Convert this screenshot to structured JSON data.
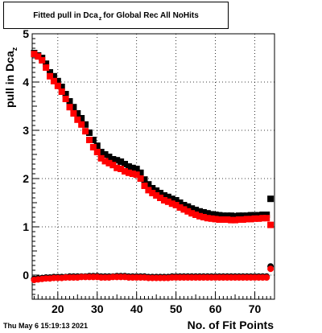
{
  "title": {
    "prefix": "Fitted pull in Dca",
    "sub": "z",
    "suffix": "for Global Rec All NoHits"
  },
  "timestamp": "Thu May  6 15:19:13 2021",
  "chart_data": {
    "type": "scatter",
    "title": "Fitted pull in Dca z for Global Rec All NoHits",
    "xlabel": "No. of Fit Points",
    "ylabel": {
      "main": "pull in Dca",
      "sub": "z"
    },
    "xlim": [
      13.5,
      75
    ],
    "ylim": [
      -0.5,
      5
    ],
    "xticks": [
      20,
      30,
      40,
      50,
      60,
      70
    ],
    "yticks": [
      0,
      1,
      2,
      3,
      4,
      5
    ],
    "grid": true,
    "series": [
      {
        "color": "#000000",
        "marker": "square",
        "x": [
          14,
          15,
          16,
          17,
          18,
          19,
          20,
          21,
          22,
          23,
          24,
          25,
          26,
          27,
          28,
          29,
          30,
          31,
          32,
          33,
          34,
          35,
          36,
          37,
          38,
          39,
          40,
          41,
          42,
          43,
          44,
          45,
          46,
          47,
          48,
          49,
          50,
          51,
          52,
          53,
          54,
          55,
          56,
          57,
          58,
          59,
          60,
          61,
          62,
          63,
          64,
          65,
          66,
          67,
          68,
          69,
          70,
          71,
          72,
          73,
          74
        ],
        "y": [
          4.6,
          4.55,
          4.5,
          4.38,
          4.2,
          4.12,
          4.02,
          3.9,
          3.75,
          3.6,
          3.48,
          3.35,
          3.25,
          3.12,
          2.95,
          2.8,
          2.68,
          2.55,
          2.5,
          2.45,
          2.4,
          2.38,
          2.35,
          2.3,
          2.25,
          2.22,
          2.2,
          2.12,
          1.98,
          1.88,
          1.8,
          1.75,
          1.7,
          1.65,
          1.62,
          1.58,
          1.55,
          1.5,
          1.45,
          1.42,
          1.38,
          1.35,
          1.32,
          1.3,
          1.28,
          1.26,
          1.25,
          1.24,
          1.23,
          1.23,
          1.23,
          1.22,
          1.23,
          1.23,
          1.23,
          1.24,
          1.24,
          1.24,
          1.25,
          1.25,
          1.58
        ]
      },
      {
        "color": "#ff0000",
        "marker": "square",
        "x": [
          14,
          15,
          16,
          17,
          18,
          19,
          20,
          21,
          22,
          23,
          24,
          25,
          26,
          27,
          28,
          29,
          30,
          31,
          32,
          33,
          34,
          35,
          36,
          37,
          38,
          39,
          40,
          41,
          42,
          43,
          44,
          45,
          46,
          47,
          48,
          49,
          50,
          51,
          52,
          53,
          54,
          55,
          56,
          57,
          58,
          59,
          60,
          61,
          62,
          63,
          64,
          65,
          66,
          67,
          68,
          69,
          70,
          71,
          72,
          73,
          74
        ],
        "y": [
          4.58,
          4.53,
          4.45,
          4.3,
          4.12,
          4.02,
          3.92,
          3.8,
          3.65,
          3.48,
          3.35,
          3.22,
          3.12,
          2.98,
          2.8,
          2.65,
          2.55,
          2.42,
          2.36,
          2.32,
          2.28,
          2.22,
          2.2,
          2.15,
          2.12,
          2.1,
          2.08,
          2.0,
          1.85,
          1.76,
          1.7,
          1.65,
          1.6,
          1.55,
          1.52,
          1.48,
          1.45,
          1.4,
          1.36,
          1.32,
          1.28,
          1.25,
          1.22,
          1.2,
          1.18,
          1.17,
          1.16,
          1.15,
          1.15,
          1.15,
          1.14,
          1.14,
          1.15,
          1.15,
          1.16,
          1.16,
          1.17,
          1.17,
          1.18,
          1.18,
          1.04
        ]
      },
      {
        "color": "#000000",
        "marker": "circle",
        "x": [
          14,
          15,
          16,
          17,
          18,
          19,
          20,
          21,
          22,
          23,
          24,
          25,
          26,
          27,
          28,
          29,
          30,
          31,
          32,
          33,
          34,
          35,
          36,
          37,
          38,
          39,
          40,
          41,
          42,
          43,
          44,
          45,
          46,
          47,
          48,
          49,
          50,
          51,
          52,
          53,
          54,
          55,
          56,
          57,
          58,
          59,
          60,
          61,
          62,
          63,
          64,
          65,
          66,
          67,
          68,
          69,
          70,
          71,
          72,
          73,
          74
        ],
        "y": [
          -0.08,
          -0.07,
          -0.06,
          -0.05,
          -0.05,
          -0.04,
          -0.04,
          -0.04,
          -0.04,
          -0.03,
          -0.03,
          -0.03,
          -0.03,
          -0.03,
          -0.02,
          -0.02,
          -0.02,
          -0.03,
          -0.03,
          -0.03,
          -0.03,
          -0.02,
          -0.02,
          -0.02,
          -0.03,
          -0.03,
          -0.03,
          -0.03,
          -0.03,
          -0.04,
          -0.04,
          -0.04,
          -0.04,
          -0.04,
          -0.04,
          -0.03,
          -0.03,
          -0.03,
          -0.03,
          -0.03,
          -0.03,
          -0.03,
          -0.03,
          -0.03,
          -0.03,
          -0.03,
          -0.03,
          -0.03,
          -0.03,
          -0.03,
          -0.03,
          -0.03,
          -0.03,
          -0.03,
          -0.03,
          -0.03,
          -0.03,
          -0.03,
          -0.03,
          -0.03,
          0.18
        ]
      },
      {
        "color": "#ff0000",
        "marker": "circle",
        "x": [
          14,
          15,
          16,
          17,
          18,
          19,
          20,
          21,
          22,
          23,
          24,
          25,
          26,
          27,
          28,
          29,
          30,
          31,
          32,
          33,
          34,
          35,
          36,
          37,
          38,
          39,
          40,
          41,
          42,
          43,
          44,
          45,
          46,
          47,
          48,
          49,
          50,
          51,
          52,
          53,
          54,
          55,
          56,
          57,
          58,
          59,
          60,
          61,
          62,
          63,
          64,
          65,
          66,
          67,
          68,
          69,
          70,
          71,
          72,
          73,
          74
        ],
        "y": [
          -0.1,
          -0.09,
          -0.08,
          -0.07,
          -0.07,
          -0.06,
          -0.06,
          -0.06,
          -0.05,
          -0.05,
          -0.05,
          -0.05,
          -0.04,
          -0.04,
          -0.04,
          -0.04,
          -0.04,
          -0.05,
          -0.05,
          -0.05,
          -0.04,
          -0.04,
          -0.04,
          -0.04,
          -0.05,
          -0.05,
          -0.05,
          -0.05,
          -0.05,
          -0.06,
          -0.06,
          -0.06,
          -0.06,
          -0.06,
          -0.06,
          -0.05,
          -0.05,
          -0.05,
          -0.05,
          -0.05,
          -0.05,
          -0.05,
          -0.05,
          -0.05,
          -0.05,
          -0.05,
          -0.05,
          -0.05,
          -0.05,
          -0.05,
          -0.05,
          -0.05,
          -0.05,
          -0.05,
          -0.05,
          -0.05,
          -0.05,
          -0.05,
          -0.05,
          -0.05,
          0.13
        ]
      }
    ]
  }
}
